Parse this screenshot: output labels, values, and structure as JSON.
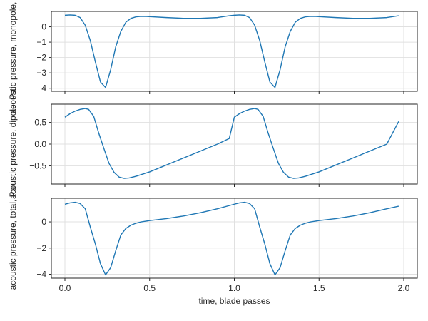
{
  "colors": {
    "series": "#1f77b4"
  },
  "chart_data": [
    {
      "type": "line",
      "ylabel": "acoustic pressure, monopole, Pa",
      "xlabel": "",
      "xlim": [
        -0.08,
        2.08
      ],
      "ylim": [
        -4.2,
        1.0
      ],
      "grid": true,
      "yticks": [
        0,
        -1,
        -2,
        -3,
        -4
      ],
      "ytick_labels": [
        "0",
        "−1",
        "−2",
        "−3",
        "−4"
      ],
      "xticks": [
        0,
        0.5,
        1.0,
        1.5,
        2.0
      ],
      "series": [
        {
          "x": [
            0,
            0.03,
            0.06,
            0.09,
            0.12,
            0.15,
            0.18,
            0.21,
            0.24,
            0.27,
            0.3,
            0.33,
            0.36,
            0.39,
            0.42,
            0.45,
            0.48,
            0.5,
            0.6,
            0.7,
            0.8,
            0.9,
            0.97,
            1.0,
            1.03,
            1.06,
            1.09,
            1.12,
            1.15,
            1.18,
            1.21,
            1.24,
            1.27,
            1.3,
            1.33,
            1.36,
            1.39,
            1.42,
            1.45,
            1.48,
            1.5,
            1.6,
            1.7,
            1.8,
            1.9,
            1.97
          ],
          "y": [
            0.75,
            0.77,
            0.75,
            0.6,
            0.1,
            -0.9,
            -2.3,
            -3.6,
            -3.95,
            -2.8,
            -1.3,
            -0.3,
            0.3,
            0.55,
            0.65,
            0.68,
            0.67,
            0.66,
            0.6,
            0.55,
            0.55,
            0.6,
            0.72,
            0.75,
            0.77,
            0.75,
            0.6,
            0.1,
            -0.9,
            -2.3,
            -3.6,
            -3.95,
            -2.8,
            -1.3,
            -0.3,
            0.3,
            0.55,
            0.65,
            0.68,
            0.67,
            0.66,
            0.6,
            0.55,
            0.55,
            0.6,
            0.72
          ]
        }
      ]
    },
    {
      "type": "line",
      "ylabel": "acoustic pressure, dipole, Pa",
      "xlabel": "",
      "xlim": [
        -0.08,
        2.08
      ],
      "ylim": [
        -0.92,
        0.92
      ],
      "grid": true,
      "yticks": [
        0.5,
        0.0,
        -0.5
      ],
      "ytick_labels": [
        "0.5",
        "0.0",
        "−0.5"
      ],
      "xticks": [
        0,
        0.5,
        1.0,
        1.5,
        2.0
      ],
      "series": [
        {
          "x": [
            0,
            0.03,
            0.06,
            0.09,
            0.12,
            0.14,
            0.17,
            0.2,
            0.23,
            0.26,
            0.29,
            0.32,
            0.35,
            0.38,
            0.42,
            0.5,
            0.7,
            0.9,
            0.97,
            1.0,
            1.03,
            1.06,
            1.09,
            1.12,
            1.14,
            1.17,
            1.2,
            1.23,
            1.26,
            1.29,
            1.32,
            1.35,
            1.38,
            1.42,
            1.5,
            1.7,
            1.9,
            1.97
          ],
          "y": [
            0.62,
            0.7,
            0.76,
            0.8,
            0.82,
            0.8,
            0.64,
            0.25,
            -0.1,
            -0.44,
            -0.65,
            -0.76,
            -0.79,
            -0.78,
            -0.74,
            -0.64,
            -0.32,
            0.0,
            0.13,
            0.62,
            0.7,
            0.76,
            0.8,
            0.82,
            0.8,
            0.64,
            0.25,
            -0.1,
            -0.44,
            -0.65,
            -0.76,
            -0.79,
            -0.78,
            -0.74,
            -0.64,
            -0.32,
            0.0,
            0.52
          ]
        }
      ]
    },
    {
      "type": "line",
      "ylabel": "acoustic pressure, total, Pa",
      "xlabel": "time, blade passes",
      "xlim": [
        -0.08,
        2.08
      ],
      "ylim": [
        -4.3,
        1.8
      ],
      "grid": true,
      "yticks": [
        0,
        -2,
        -4
      ],
      "ytick_labels": [
        "0",
        "−2",
        "−4"
      ],
      "xticks": [
        0,
        0.5,
        1.0,
        1.5,
        2.0
      ],
      "xtick_labels": [
        "0.0",
        "0.5",
        "1.0",
        "1.5",
        "2.0"
      ],
      "series": [
        {
          "x": [
            0,
            0.03,
            0.06,
            0.09,
            0.12,
            0.15,
            0.18,
            0.21,
            0.24,
            0.27,
            0.3,
            0.33,
            0.36,
            0.39,
            0.42,
            0.45,
            0.5,
            0.6,
            0.7,
            0.8,
            0.9,
            1.0,
            1.03,
            1.06,
            1.09,
            1.12,
            1.15,
            1.18,
            1.21,
            1.24,
            1.27,
            1.3,
            1.33,
            1.36,
            1.39,
            1.42,
            1.45,
            1.5,
            1.6,
            1.7,
            1.8,
            1.9,
            1.97
          ],
          "y": [
            1.35,
            1.45,
            1.5,
            1.4,
            1.0,
            -0.4,
            -1.7,
            -3.2,
            -4.05,
            -3.5,
            -2.2,
            -1.0,
            -0.5,
            -0.25,
            -0.1,
            0.0,
            0.1,
            0.25,
            0.45,
            0.7,
            1.0,
            1.35,
            1.45,
            1.5,
            1.4,
            1.0,
            -0.4,
            -1.7,
            -3.2,
            -4.05,
            -3.5,
            -2.2,
            -1.0,
            -0.5,
            -0.25,
            -0.1,
            0.0,
            0.1,
            0.25,
            0.45,
            0.7,
            1.0,
            1.2
          ]
        }
      ]
    }
  ]
}
